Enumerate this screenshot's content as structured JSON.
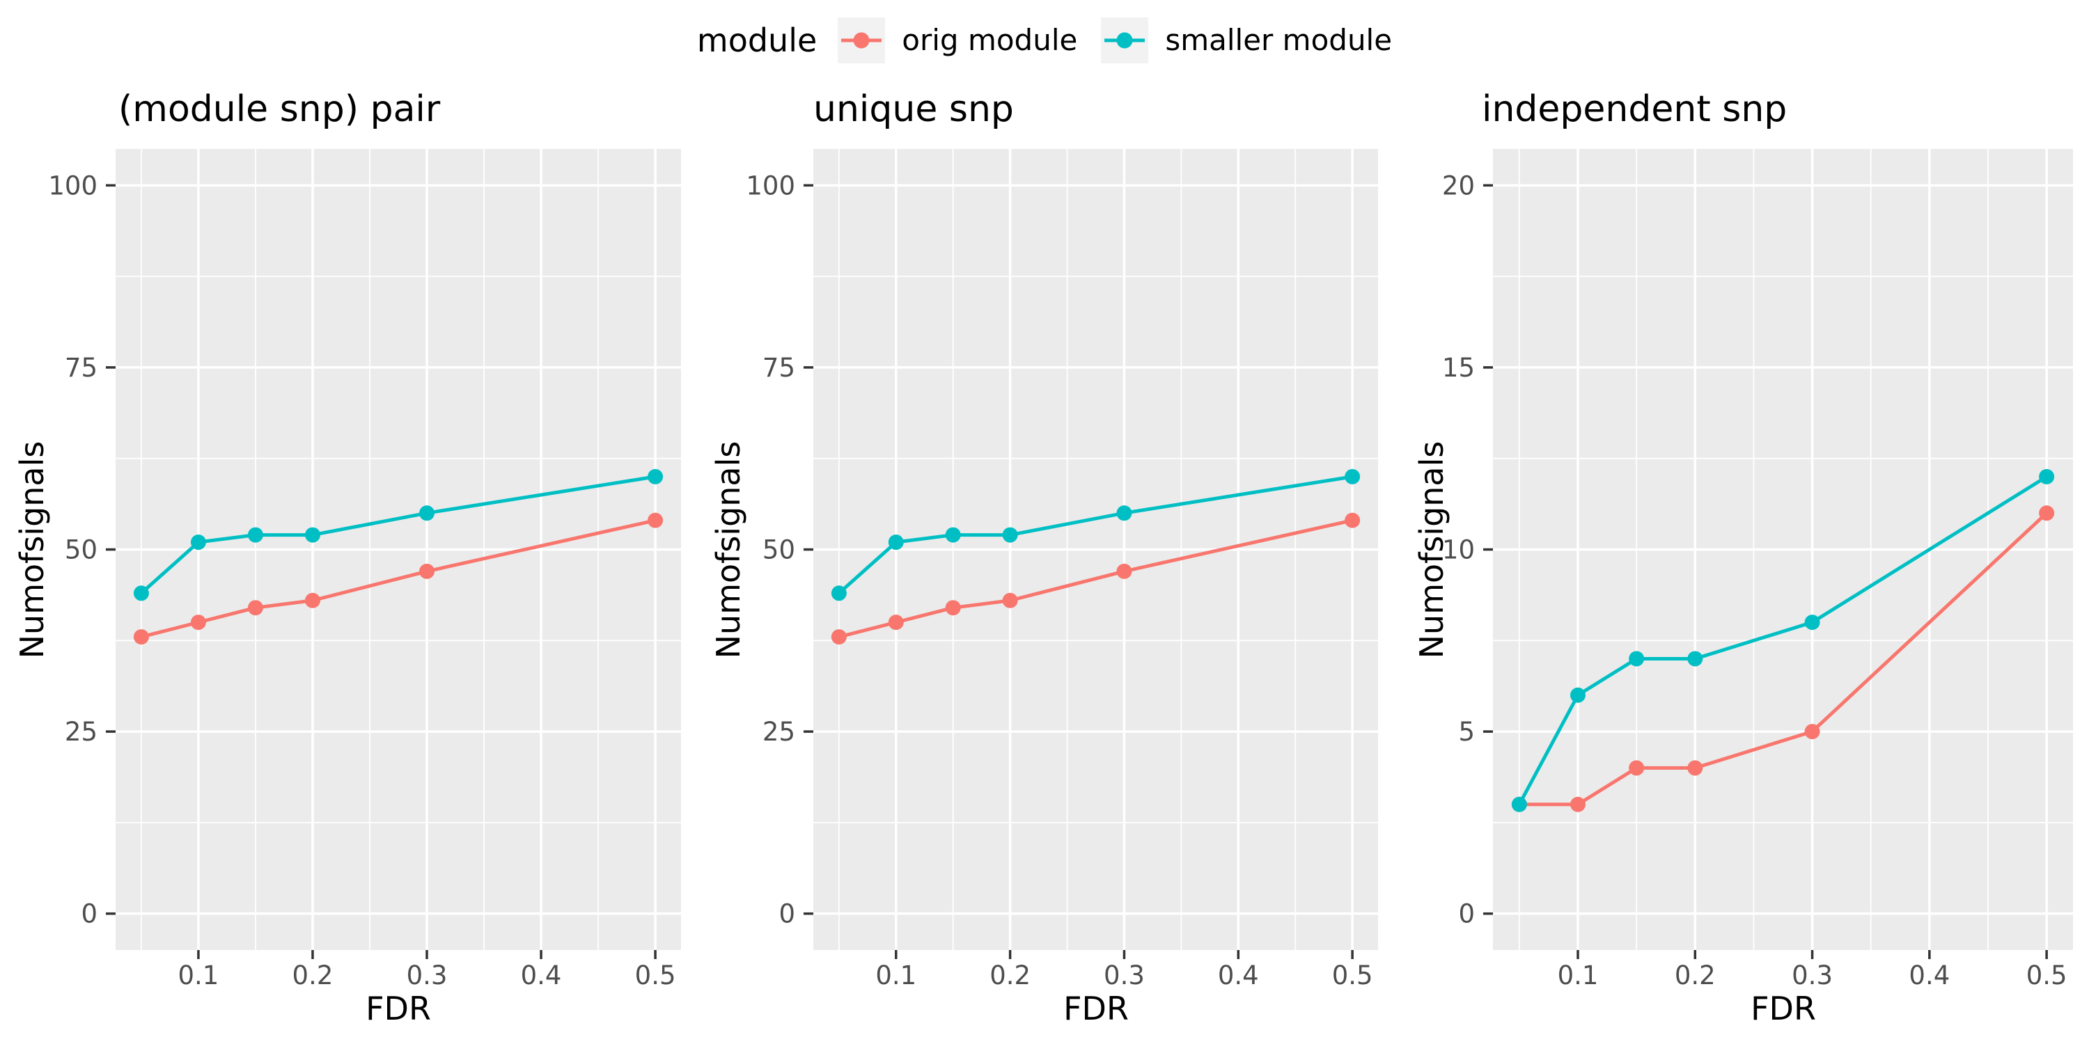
{
  "figure": {
    "background": "#FFFFFF"
  },
  "legend": {
    "title": "module",
    "position": "top",
    "key_background": "#F2F2F2",
    "items": [
      {
        "label": "orig module",
        "color": "#F8766D"
      },
      {
        "label": "smaller module",
        "color": "#00BFC4"
      }
    ]
  },
  "style": {
    "panel_background": "#EBEBEB",
    "gridline_color": "#FFFFFF",
    "tick_label_color": "#4D4D4D",
    "tick_mark_color": "#333333",
    "text_color": "#000000"
  },
  "chart_data": [
    {
      "type": "line",
      "title": "(module snp) pair",
      "xlabel": "FDR",
      "ylabel": "Numofsignals",
      "x": [
        0.05,
        0.1,
        0.15,
        0.2,
        0.3,
        0.5
      ],
      "series": [
        {
          "name": "orig module",
          "color": "#F8766D",
          "values": [
            38,
            40,
            42,
            43,
            47,
            54
          ]
        },
        {
          "name": "smaller module",
          "color": "#00BFC4",
          "values": [
            44,
            51,
            52,
            52,
            55,
            60
          ]
        }
      ],
      "xticks": {
        "values": [
          0.1,
          0.2,
          0.3,
          0.4,
          0.5
        ],
        "labels": [
          "0.1",
          "0.2",
          "0.3",
          "0.4",
          "0.5"
        ]
      },
      "yticks": {
        "values": [
          0,
          25,
          50,
          75,
          100
        ],
        "labels": [
          "0",
          "25",
          "50",
          "75",
          "100"
        ]
      },
      "ylim": [
        0,
        100
      ],
      "xlim": [
        0.05,
        0.5
      ],
      "x_domain": [
        0.0275,
        0.5225
      ],
      "y_domain": [
        -5,
        105
      ],
      "grid": true,
      "legend_position": "top"
    },
    {
      "type": "line",
      "title": "unique snp",
      "xlabel": "FDR",
      "ylabel": "Numofsignals",
      "x": [
        0.05,
        0.1,
        0.15,
        0.2,
        0.3,
        0.5
      ],
      "series": [
        {
          "name": "orig module",
          "color": "#F8766D",
          "values": [
            38,
            40,
            42,
            43,
            47,
            54
          ]
        },
        {
          "name": "smaller module",
          "color": "#00BFC4",
          "values": [
            44,
            51,
            52,
            52,
            55,
            60
          ]
        }
      ],
      "xticks": {
        "values": [
          0.1,
          0.2,
          0.3,
          0.4,
          0.5
        ],
        "labels": [
          "0.1",
          "0.2",
          "0.3",
          "0.4",
          "0.5"
        ]
      },
      "yticks": {
        "values": [
          0,
          25,
          50,
          75,
          100
        ],
        "labels": [
          "0",
          "25",
          "50",
          "75",
          "100"
        ]
      },
      "ylim": [
        0,
        100
      ],
      "xlim": [
        0.05,
        0.5
      ],
      "x_domain": [
        0.0275,
        0.5225
      ],
      "y_domain": [
        -5,
        105
      ],
      "grid": true,
      "legend_position": "top"
    },
    {
      "type": "line",
      "title": "independent snp",
      "xlabel": "FDR",
      "ylabel": "Numofsignals",
      "x": [
        0.05,
        0.1,
        0.15,
        0.2,
        0.3,
        0.5
      ],
      "series": [
        {
          "name": "orig module",
          "color": "#F8766D",
          "values": [
            3,
            3,
            4,
            4,
            5,
            11
          ]
        },
        {
          "name": "smaller module",
          "color": "#00BFC4",
          "values": [
            3,
            6,
            7,
            7,
            8,
            12
          ]
        }
      ],
      "xticks": {
        "values": [
          0.1,
          0.2,
          0.3,
          0.4,
          0.5
        ],
        "labels": [
          "0.1",
          "0.2",
          "0.3",
          "0.4",
          "0.5"
        ]
      },
      "yticks": {
        "values": [
          0,
          5,
          10,
          15,
          20
        ],
        "labels": [
          "0",
          "5",
          "10",
          "15",
          "20"
        ]
      },
      "ylim": [
        0,
        20
      ],
      "xlim": [
        0.05,
        0.5
      ],
      "x_domain": [
        0.0275,
        0.5225
      ],
      "y_domain": [
        -1,
        21
      ],
      "grid": true,
      "legend_position": "top"
    }
  ]
}
